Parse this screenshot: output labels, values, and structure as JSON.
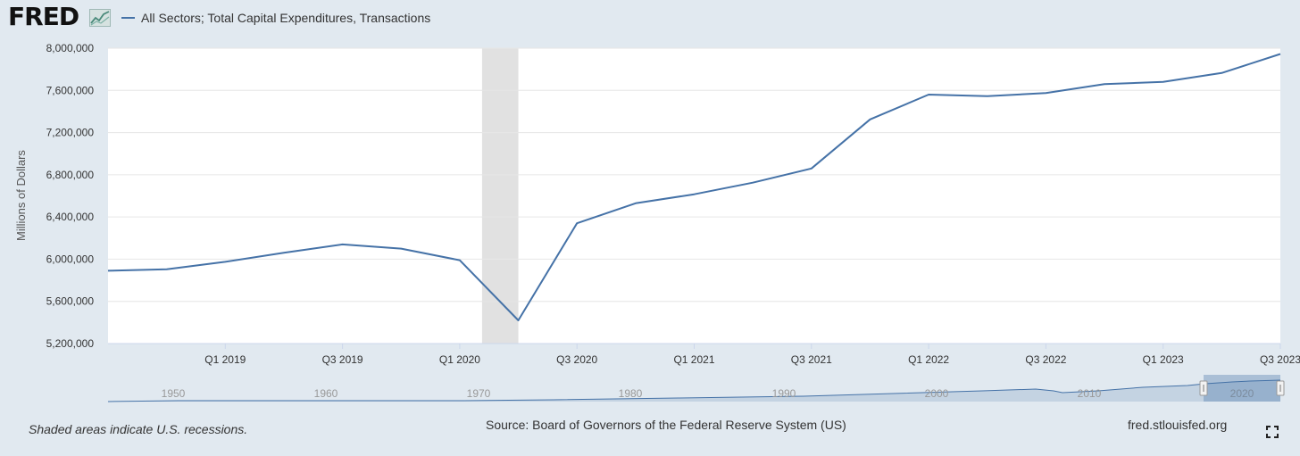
{
  "header": {
    "logo": "FRED",
    "legend_label": "All Sectors; Total Capital Expenditures, Transactions"
  },
  "chart_data": {
    "type": "line",
    "title": "All Sectors; Total Capital Expenditures, Transactions",
    "ylabel": "Millions of Dollars",
    "xlabel": "",
    "ylim": [
      5200000,
      8000000
    ],
    "y_ticks": [
      "5,200,000",
      "5,600,000",
      "6,000,000",
      "6,400,000",
      "6,800,000",
      "7,200,000",
      "7,600,000",
      "8,000,000"
    ],
    "y_tick_values": [
      5200000,
      5600000,
      6000000,
      6400000,
      6800000,
      7200000,
      7600000,
      8000000
    ],
    "x_ticks": [
      "Q1 2019",
      "Q3 2019",
      "Q1 2020",
      "Q3 2020",
      "Q1 2021",
      "Q3 2021",
      "Q1 2022",
      "Q3 2022",
      "Q1 2023",
      "Q3 2023"
    ],
    "x": [
      "2018 Q3",
      "2018 Q4",
      "2019 Q1",
      "2019 Q2",
      "2019 Q3",
      "2019 Q4",
      "2020 Q1",
      "2020 Q2",
      "2020 Q3",
      "2020 Q4",
      "2021 Q1",
      "2021 Q2",
      "2021 Q3",
      "2021 Q4",
      "2022 Q1",
      "2022 Q2",
      "2022 Q3",
      "2022 Q4",
      "2023 Q1",
      "2023 Q2",
      "2023 Q3"
    ],
    "series": [
      {
        "name": "All Sectors; Total Capital Expenditures, Transactions",
        "color": "#4572a7",
        "values": [
          5890000,
          5905000,
          5975000,
          6060000,
          6140000,
          6100000,
          5990000,
          5420000,
          6340000,
          6530000,
          6615000,
          6725000,
          6860000,
          7325000,
          7560000,
          7545000,
          7575000,
          7660000,
          7680000,
          7765000,
          7945000
        ]
      }
    ],
    "recession": {
      "start": "2020 Q1",
      "end": "2020 Q2",
      "color": "#e1e1e1"
    },
    "grid": true
  },
  "navigator": {
    "year_labels": [
      "1950",
      "1960",
      "1970",
      "1980",
      "1990",
      "2000",
      "2010",
      "2020"
    ]
  },
  "footer": {
    "note": "Shaded areas indicate U.S. recessions.",
    "source": "Source: Board of Governors of the Federal Reserve System (US)",
    "site": "fred.stlouisfed.org"
  }
}
